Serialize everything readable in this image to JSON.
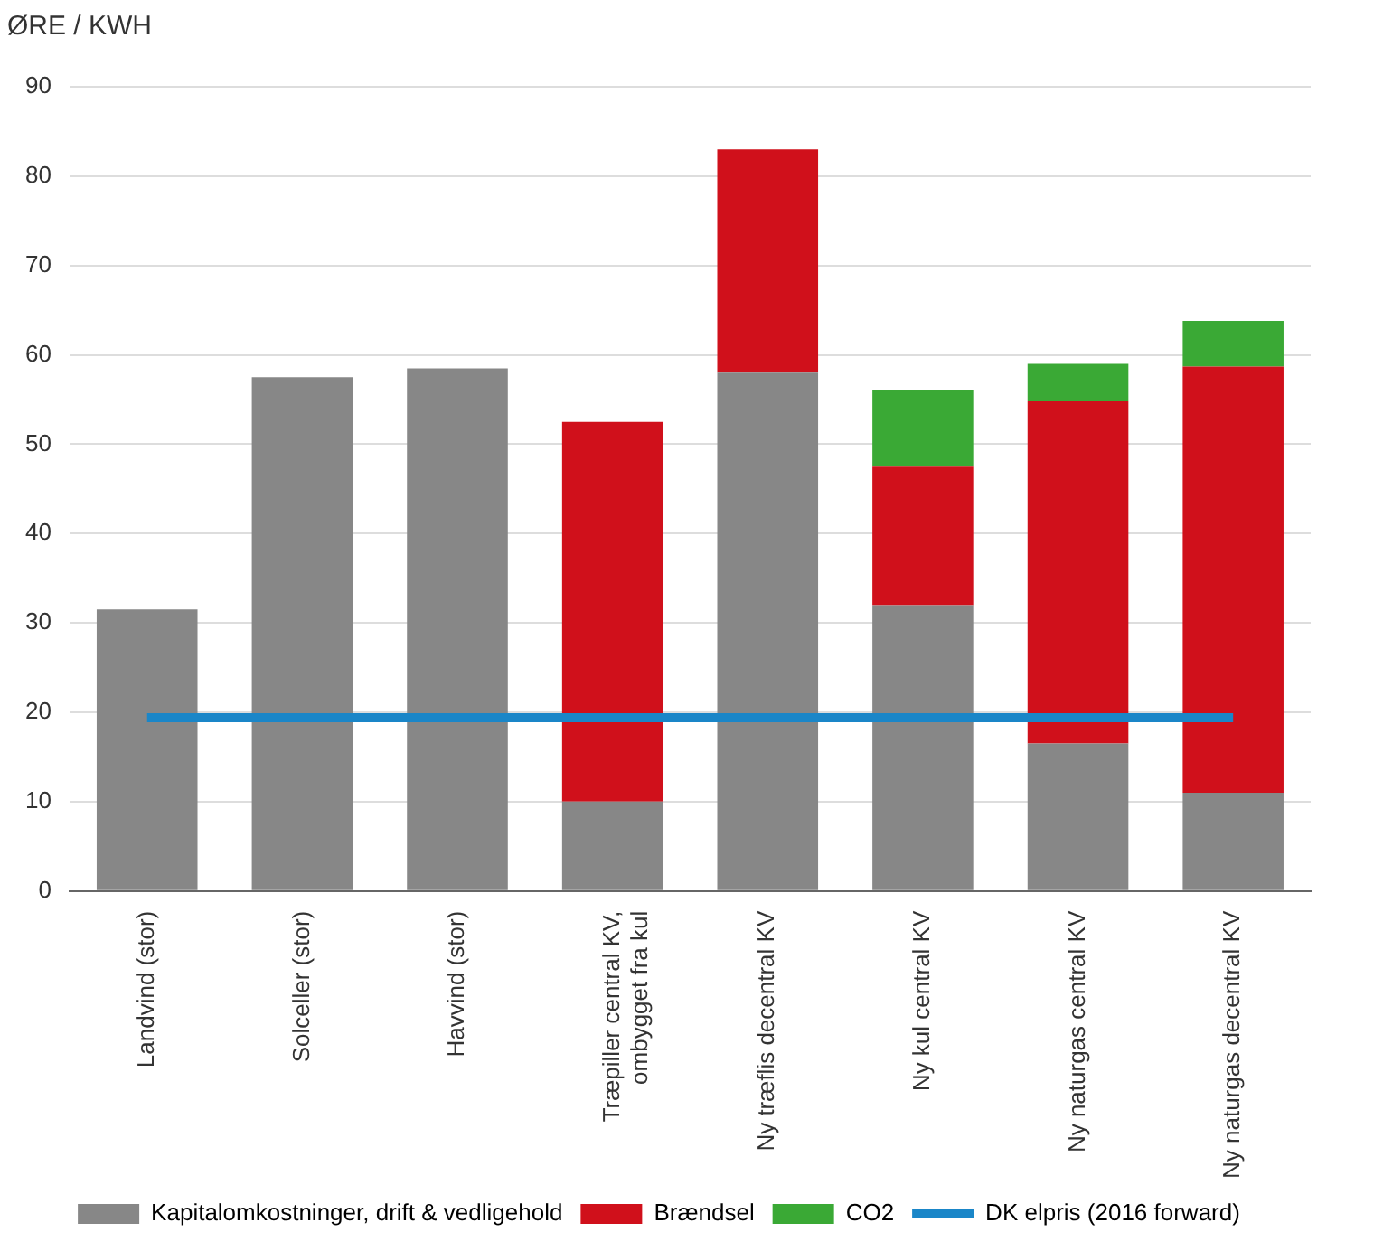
{
  "chart_data": {
    "type": "bar",
    "ylabel": "ØRE / KWH",
    "stacked": true,
    "categories": [
      "Landvind (stor)",
      "Solceller (stor)",
      "Havvind (stor)",
      "Træpiller central KV, ombygget fra kul",
      "Ny træflis decentral KV",
      "Ny kul central KV",
      "Ny naturgas central KV",
      "Ny naturgas decentral KV"
    ],
    "series": [
      {
        "name": "Kapitalomkostninger, drift & vedligehold",
        "color": "#878787",
        "values": [
          31.5,
          57.5,
          58.5,
          10,
          58,
          32,
          16.5,
          11
        ]
      },
      {
        "name": "Brændsel",
        "color": "#d0101b",
        "values": [
          null,
          null,
          null,
          42.5,
          25,
          15.5,
          38.3,
          47.7
        ]
      },
      {
        "name": "CO2",
        "color": "#3aa935",
        "values": [
          null,
          null,
          null,
          null,
          null,
          8.5,
          4.2,
          5.1
        ]
      },
      {
        "name": "DK elpris (2016 forward)",
        "type": "line",
        "color": "#1a86c8",
        "values": [
          19.4,
          19.4,
          19.4,
          19.4,
          19.4,
          19.4,
          19.4,
          19.4
        ]
      }
    ],
    "ylim": [
      0,
      90
    ],
    "yticks": [
      0,
      10,
      20,
      30,
      40,
      50,
      60,
      70,
      80,
      90
    ],
    "grid": "y",
    "legend": "bottom",
    "marker": "none"
  }
}
